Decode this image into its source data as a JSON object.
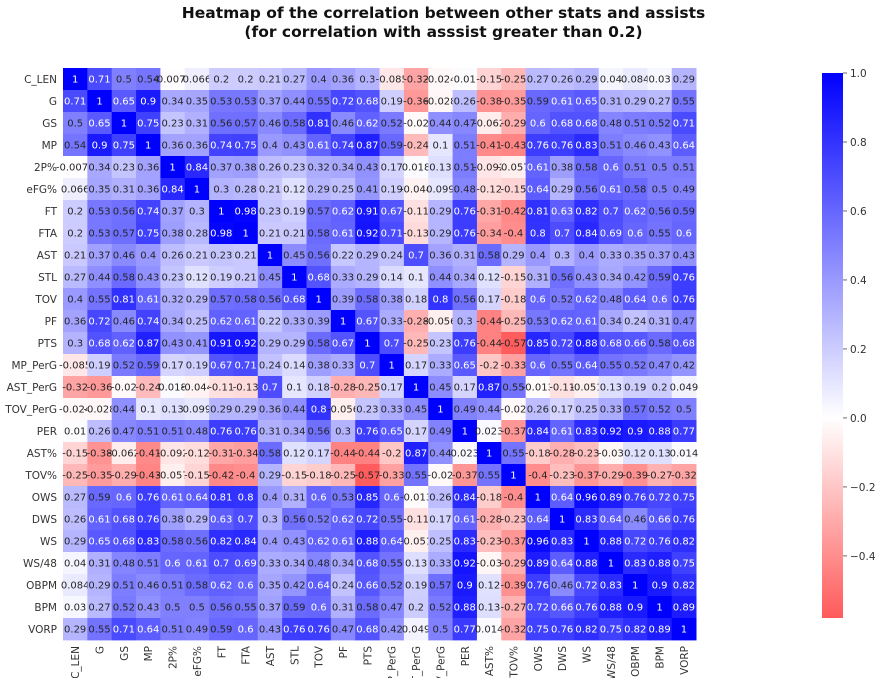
{
  "chart_data": {
    "type": "heatmap",
    "title": "Heatmap of the correlation between other stats and assists",
    "subtitle": "(for correlation with asssist greater than 0.2)",
    "labels": [
      "C_LEN",
      "G",
      "GS",
      "MP",
      "2P%",
      "eFG%",
      "FT",
      "FTA",
      "AST",
      "STL",
      "TOV",
      "PF",
      "PTS",
      "MP_PerG",
      "AST_PerG",
      "TOV_PerG",
      "PER",
      "AST%",
      "TOV%",
      "OWS",
      "DWS",
      "WS",
      "WS/48",
      "OBPM",
      "BPM",
      "VORP"
    ],
    "matrix": [
      [
        1,
        0.71,
        0.5,
        0.54,
        -0.0074,
        0.066,
        0.2,
        0.2,
        0.21,
        0.27,
        0.4,
        0.36,
        0.3,
        -0.085,
        -0.32,
        -0.024,
        0.01,
        -0.15,
        -0.25,
        0.27,
        0.26,
        0.29,
        0.04,
        0.084,
        0.03,
        0.29
      ],
      [
        0.71,
        1,
        0.65,
        0.9,
        0.34,
        0.35,
        0.53,
        0.53,
        0.37,
        0.44,
        0.55,
        0.72,
        0.68,
        0.19,
        -0.36,
        -0.028,
        0.26,
        -0.38,
        -0.35,
        0.59,
        0.61,
        0.65,
        0.31,
        0.29,
        0.27,
        0.55
      ],
      [
        0.5,
        0.65,
        1,
        0.75,
        0.23,
        0.31,
        0.56,
        0.57,
        0.46,
        0.58,
        0.81,
        0.46,
        0.62,
        0.52,
        -0.02,
        0.44,
        0.47,
        -0.062,
        -0.29,
        0.6,
        0.68,
        0.68,
        0.48,
        0.51,
        0.52,
        0.71
      ],
      [
        0.54,
        0.9,
        0.75,
        1,
        0.36,
        0.36,
        0.74,
        0.75,
        0.4,
        0.43,
        0.61,
        0.74,
        0.87,
        0.59,
        -0.24,
        0.1,
        0.51,
        -0.41,
        -0.43,
        0.76,
        0.76,
        0.83,
        0.51,
        0.46,
        0.43,
        0.64
      ],
      [
        -0.0074,
        0.34,
        0.23,
        0.36,
        1,
        0.84,
        0.37,
        0.38,
        0.26,
        0.23,
        0.32,
        0.34,
        0.43,
        0.17,
        0.018,
        0.13,
        0.51,
        -0.092,
        -0.057,
        0.61,
        0.38,
        0.58,
        0.6,
        0.51,
        0.5,
        0.51
      ],
      [
        0.066,
        0.35,
        0.31,
        0.36,
        0.84,
        1,
        0.3,
        0.28,
        0.21,
        0.12,
        0.29,
        0.25,
        0.41,
        0.19,
        -0.044,
        0.099,
        0.48,
        -0.12,
        -0.15,
        0.64,
        0.29,
        0.56,
        0.61,
        0.58,
        0.5,
        0.49
      ],
      [
        0.2,
        0.53,
        0.56,
        0.74,
        0.37,
        0.3,
        1,
        0.98,
        0.23,
        0.19,
        0.57,
        0.62,
        0.91,
        0.67,
        -0.11,
        0.29,
        0.76,
        -0.31,
        -0.42,
        0.81,
        0.63,
        0.82,
        0.7,
        0.62,
        0.56,
        0.59
      ],
      [
        0.2,
        0.53,
        0.57,
        0.75,
        0.38,
        0.28,
        0.98,
        1,
        0.21,
        0.21,
        0.58,
        0.61,
        0.92,
        0.71,
        -0.13,
        0.29,
        0.76,
        -0.34,
        -0.4,
        0.8,
        0.7,
        0.84,
        0.69,
        0.6,
        0.55,
        0.6
      ],
      [
        0.21,
        0.37,
        0.46,
        0.4,
        0.26,
        0.21,
        0.23,
        0.21,
        1,
        0.45,
        0.56,
        0.22,
        0.29,
        0.24,
        0.7,
        0.36,
        0.31,
        0.58,
        0.29,
        0.4,
        0.3,
        0.4,
        0.33,
        0.35,
        0.37,
        0.43
      ],
      [
        0.27,
        0.44,
        0.58,
        0.43,
        0.23,
        0.12,
        0.19,
        0.21,
        0.45,
        1,
        0.68,
        0.33,
        0.29,
        0.14,
        0.1,
        0.44,
        0.34,
        0.12,
        -0.15,
        0.31,
        0.56,
        0.43,
        0.34,
        0.42,
        0.59,
        0.76
      ],
      [
        0.4,
        0.55,
        0.81,
        0.61,
        0.32,
        0.29,
        0.57,
        0.58,
        0.56,
        0.68,
        1,
        0.39,
        0.58,
        0.38,
        0.18,
        0.8,
        0.56,
        0.17,
        -0.18,
        0.6,
        0.52,
        0.62,
        0.48,
        0.64,
        0.6,
        0.76
      ],
      [
        0.36,
        0.72,
        0.46,
        0.74,
        0.34,
        0.25,
        0.62,
        0.61,
        0.22,
        0.33,
        0.39,
        1,
        0.67,
        0.33,
        -0.28,
        -0.056,
        0.3,
        -0.44,
        -0.25,
        0.53,
        0.62,
        0.61,
        0.34,
        0.24,
        0.31,
        0.47
      ],
      [
        0.3,
        0.68,
        0.62,
        0.87,
        0.43,
        0.41,
        0.91,
        0.92,
        0.29,
        0.29,
        0.58,
        0.67,
        1,
        0.7,
        -0.25,
        0.23,
        0.76,
        -0.44,
        -0.57,
        0.85,
        0.72,
        0.88,
        0.68,
        0.66,
        0.58,
        0.68
      ],
      [
        -0.085,
        0.19,
        0.52,
        0.59,
        0.17,
        0.19,
        0.67,
        0.71,
        0.24,
        0.14,
        0.38,
        0.33,
        0.7,
        1,
        0.17,
        0.33,
        0.65,
        -0.2,
        -0.33,
        0.6,
        0.55,
        0.64,
        0.55,
        0.52,
        0.47,
        0.42
      ],
      [
        -0.32,
        -0.36,
        -0.02,
        -0.24,
        0.018,
        -0.044,
        -0.11,
        -0.13,
        0.7,
        0.1,
        0.18,
        -0.28,
        -0.25,
        0.17,
        1,
        0.45,
        0.17,
        0.87,
        0.55,
        -0.013,
        -0.11,
        -0.051,
        0.13,
        0.19,
        0.2,
        0.049
      ],
      [
        -0.024,
        -0.028,
        0.44,
        0.1,
        0.13,
        0.099,
        0.29,
        0.29,
        0.36,
        0.44,
        0.8,
        -0.056,
        0.23,
        0.33,
        0.45,
        1,
        0.49,
        0.44,
        -0.02,
        0.26,
        0.17,
        0.25,
        0.33,
        0.57,
        0.52,
        0.5
      ],
      [
        0.01,
        0.26,
        0.47,
        0.51,
        0.51,
        0.48,
        0.76,
        0.76,
        0.31,
        0.34,
        0.56,
        0.3,
        0.76,
        0.65,
        0.17,
        0.49,
        1,
        0.023,
        -0.37,
        0.84,
        0.61,
        0.83,
        0.92,
        0.9,
        0.88,
        0.77
      ],
      [
        -0.15,
        -0.38,
        -0.062,
        -0.41,
        -0.092,
        -0.12,
        -0.31,
        -0.34,
        0.58,
        0.12,
        0.17,
        -0.44,
        -0.44,
        -0.2,
        0.87,
        0.44,
        0.023,
        1,
        0.55,
        -0.18,
        -0.28,
        -0.23,
        -0.03,
        0.12,
        0.13,
        0.014
      ],
      [
        -0.25,
        -0.35,
        -0.29,
        -0.43,
        -0.057,
        -0.15,
        -0.42,
        -0.4,
        0.29,
        -0.15,
        -0.18,
        -0.25,
        -0.57,
        -0.33,
        0.55,
        -0.02,
        -0.37,
        0.55,
        1,
        -0.4,
        -0.23,
        -0.37,
        -0.29,
        -0.39,
        -0.27,
        -0.32
      ],
      [
        0.27,
        0.59,
        0.6,
        0.76,
        0.61,
        0.64,
        0.81,
        0.8,
        0.4,
        0.31,
        0.6,
        0.53,
        0.85,
        0.6,
        -0.013,
        0.26,
        0.84,
        -0.18,
        -0.4,
        1,
        0.64,
        0.96,
        0.89,
        0.76,
        0.72,
        0.75
      ],
      [
        0.26,
        0.61,
        0.68,
        0.76,
        0.38,
        0.29,
        0.63,
        0.7,
        0.3,
        0.56,
        0.52,
        0.62,
        0.72,
        0.55,
        -0.11,
        0.17,
        0.61,
        -0.28,
        -0.23,
        0.64,
        1,
        0.83,
        0.64,
        0.46,
        0.66,
        0.76
      ],
      [
        0.29,
        0.65,
        0.68,
        0.83,
        0.58,
        0.56,
        0.82,
        0.84,
        0.4,
        0.43,
        0.62,
        0.61,
        0.88,
        0.64,
        -0.051,
        0.25,
        0.83,
        -0.23,
        -0.37,
        0.96,
        0.83,
        1,
        0.88,
        0.72,
        0.76,
        0.82
      ],
      [
        0.04,
        0.31,
        0.48,
        0.51,
        0.6,
        0.61,
        0.7,
        0.69,
        0.33,
        0.34,
        0.48,
        0.34,
        0.68,
        0.55,
        0.13,
        0.33,
        0.92,
        -0.03,
        -0.29,
        0.89,
        0.64,
        0.88,
        1,
        0.83,
        0.88,
        0.75
      ],
      [
        0.084,
        0.29,
        0.51,
        0.46,
        0.51,
        0.58,
        0.62,
        0.6,
        0.35,
        0.42,
        0.64,
        0.24,
        0.66,
        0.52,
        0.19,
        0.57,
        0.9,
        0.12,
        -0.39,
        0.76,
        0.46,
        0.72,
        0.83,
        1,
        0.9,
        0.82
      ],
      [
        0.03,
        0.27,
        0.52,
        0.43,
        0.5,
        0.5,
        0.56,
        0.55,
        0.37,
        0.59,
        0.6,
        0.31,
        0.58,
        0.47,
        0.2,
        0.52,
        0.88,
        0.13,
        -0.27,
        0.72,
        0.66,
        0.76,
        0.88,
        0.9,
        1,
        0.89
      ],
      [
        0.29,
        0.55,
        0.71,
        0.64,
        0.51,
        0.49,
        0.59,
        0.6,
        0.43,
        0.76,
        0.76,
        0.47,
        0.68,
        0.42,
        0.049,
        0.5,
        0.77,
        0.014,
        -0.32,
        0.75,
        0.76,
        0.82,
        0.75,
        0.82,
        0.89,
        1
      ]
    ],
    "colorbar": {
      "vmin": -0.58,
      "vmax": 1,
      "ticks": [
        "1.0",
        "0.8",
        "0.6",
        "0.4",
        "0.2",
        "0.0",
        "−0.2",
        "−0.4"
      ],
      "tick_values": [
        1.0,
        0.8,
        0.6,
        0.4,
        0.2,
        0.0,
        -0.2,
        -0.4
      ],
      "colormap": "bwr_r",
      "color_low": "#ff5a5a",
      "color_mid": "#ffffff",
      "color_high": "#0000ff"
    },
    "annotations": true,
    "grid": false
  }
}
